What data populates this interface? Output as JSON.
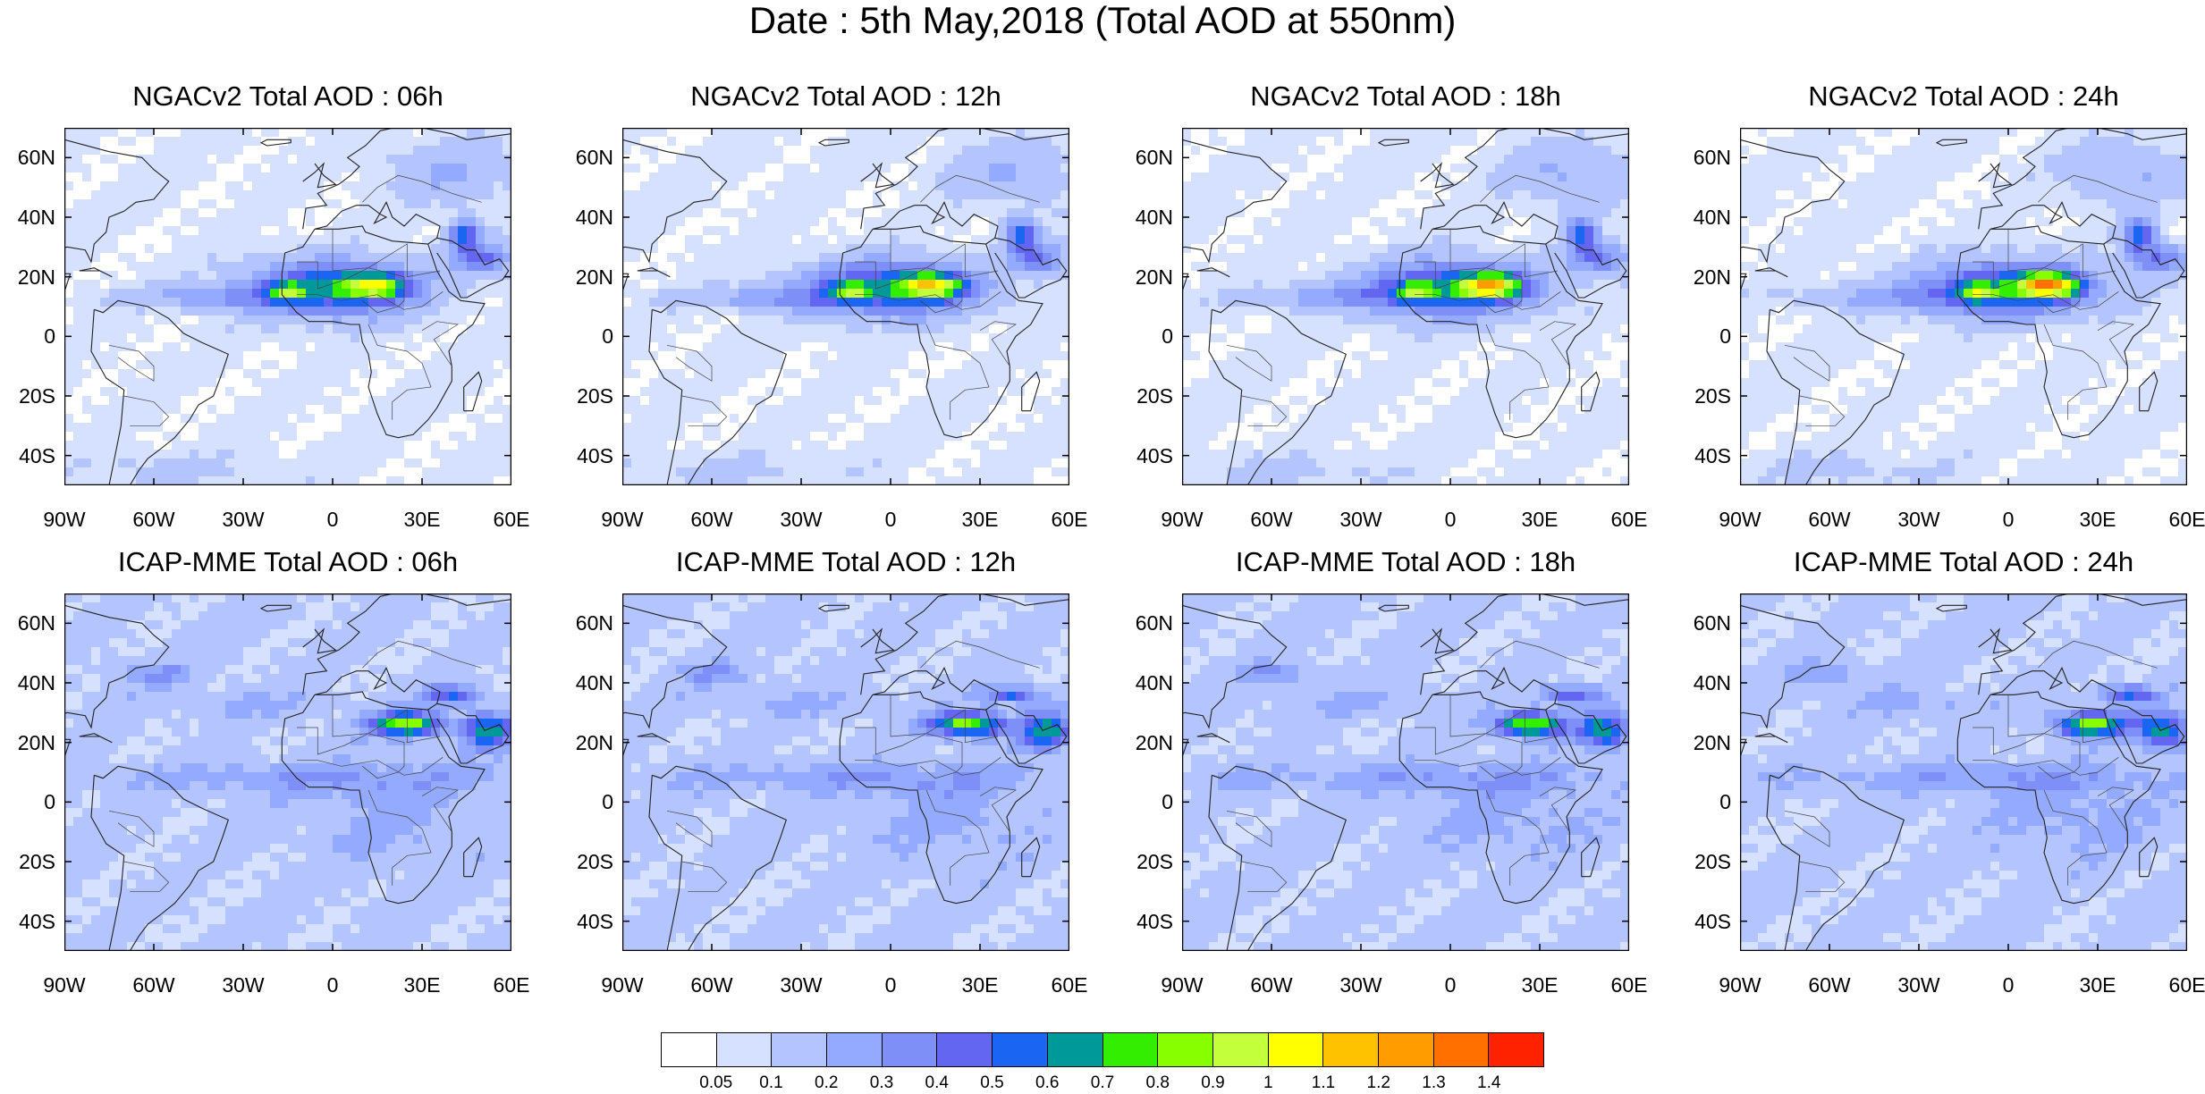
{
  "title": "Date : 5th May,2018 (Total AOD at 550nm)",
  "panels": [
    {
      "title": "NGACv2 Total AOD : 06h",
      "model": "ngac",
      "seed": 1
    },
    {
      "title": "NGACv2 Total AOD : 12h",
      "model": "ngac",
      "seed": 2
    },
    {
      "title": "NGACv2 Total AOD : 18h",
      "model": "ngac",
      "seed": 3
    },
    {
      "title": "NGACv2 Total AOD : 24h",
      "model": "ngac",
      "seed": 4
    },
    {
      "title": "ICAP-MME Total AOD : 06h",
      "model": "icap",
      "seed": 5
    },
    {
      "title": "ICAP-MME Total AOD : 12h",
      "model": "icap",
      "seed": 6
    },
    {
      "title": "ICAP-MME Total AOD : 18h",
      "model": "icap",
      "seed": 7
    },
    {
      "title": "ICAP-MME Total AOD : 24h",
      "model": "icap",
      "seed": 8
    }
  ],
  "lat_labels": [
    "60N",
    "40N",
    "20N",
    "0",
    "20S",
    "40S"
  ],
  "lat_values": [
    60,
    40,
    20,
    0,
    -20,
    -40
  ],
  "lon_labels": [
    "90W",
    "60W",
    "30W",
    "0",
    "30E",
    "60E"
  ],
  "lon_values": [
    -90,
    -60,
    -30,
    0,
    30,
    60
  ],
  "extent": {
    "lon_min": -90,
    "lon_max": 60,
    "lat_min": -50,
    "lat_max": 70
  },
  "colorbar": {
    "labels": [
      "0.05",
      "0.1",
      "0.2",
      "0.3",
      "0.4",
      "0.5",
      "0.6",
      "0.7",
      "0.8",
      "0.9",
      "1",
      "1.1",
      "1.2",
      "1.3",
      "1.4"
    ],
    "colors": [
      "#ffffff",
      "#d6e0ff",
      "#b4c4ff",
      "#94aaff",
      "#7f8ff8",
      "#6266f0",
      "#1a66f2",
      "#00999a",
      "#33ee00",
      "#88ff00",
      "#c4ff3c",
      "#ffff00",
      "#ffc200",
      "#ff9c00",
      "#ff7000",
      "#ff2200"
    ]
  }
}
